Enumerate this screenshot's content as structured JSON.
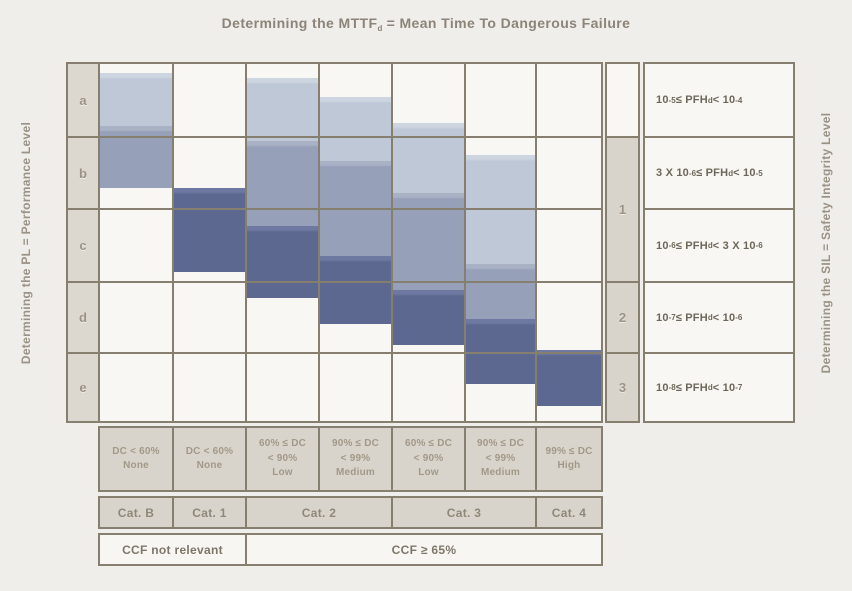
{
  "title": "Determining the MTTF_{d} = Mean Time To Dangerous Failure",
  "left_axis_label": "Determining the PL = Performance Level",
  "right_axis_label": "Determining the SIL = Safety Integrity Level",
  "pl_levels": [
    "a",
    "b",
    "c",
    "d",
    "e"
  ],
  "colors": {
    "background": "#f0eeeb",
    "cell_white": "#f8f7f4",
    "beige": "#d9d4cb",
    "label_beige": "#dcd8cf",
    "border": "#867e6f",
    "mttfd_low": "#bec8d7",
    "mttfd_low_highlight": "#cdd5e1",
    "mttfd_medium": "#96a0b8",
    "mttfd_medium_highlight": "#a9b2c5",
    "mttfd_high": "#5c6890",
    "mttfd_high_highlight": "#6d79a0"
  },
  "columns": [
    {
      "dc_label": [
        "DC < 60%",
        "None"
      ],
      "segments": [
        {
          "level": "low",
          "from": 0.16,
          "to": 0.89
        },
        {
          "level": "medium",
          "from": 0.89,
          "to": 1.75
        }
      ]
    },
    {
      "dc_label": [
        "DC < 60%",
        "None"
      ],
      "segments": [
        {
          "level": "high",
          "from": 1.75,
          "to": 2.92
        }
      ]
    },
    {
      "dc_label": [
        "60% ≤ DC",
        "< 90%",
        "Low"
      ],
      "segments": [
        {
          "level": "low",
          "from": 0.22,
          "to": 1.1
        },
        {
          "level": "medium",
          "from": 1.1,
          "to": 2.28
        },
        {
          "level": "high",
          "from": 2.28,
          "to": 3.28
        }
      ]
    },
    {
      "dc_label": [
        "90% ≤ DC",
        "< 99%",
        "Medium"
      ],
      "segments": [
        {
          "level": "low",
          "from": 0.49,
          "to": 1.38
        },
        {
          "level": "medium",
          "from": 1.38,
          "to": 2.7
        },
        {
          "level": "high",
          "from": 2.7,
          "to": 3.65
        }
      ]
    },
    {
      "dc_label": [
        "60% ≤ DC",
        "< 90%",
        "Low"
      ],
      "segments": [
        {
          "level": "low",
          "from": 0.85,
          "to": 1.83
        },
        {
          "level": "medium",
          "from": 1.83,
          "to": 3.18
        },
        {
          "level": "high",
          "from": 3.18,
          "to": 3.94
        }
      ]
    },
    {
      "dc_label": [
        "90% ≤ DC",
        "< 99%",
        "Medium"
      ],
      "segments": [
        {
          "level": "low",
          "from": 1.3,
          "to": 2.81
        },
        {
          "level": "medium",
          "from": 2.81,
          "to": 3.58
        },
        {
          "level": "high",
          "from": 3.58,
          "to": 4.48
        }
      ]
    },
    {
      "dc_label": [
        "99% ≤ DC",
        "High"
      ],
      "segments": [
        {
          "level": "high",
          "from": 4.01,
          "to": 4.79
        }
      ]
    }
  ],
  "categories": [
    {
      "label": "Cat. B",
      "span": 1
    },
    {
      "label": "Cat. 1",
      "span": 1
    },
    {
      "label": "Cat. 2",
      "span": 2
    },
    {
      "label": "Cat. 3",
      "span": 2
    },
    {
      "label": "Cat. 4",
      "span": 1
    }
  ],
  "ccf": [
    {
      "label": "CCF not relevant",
      "span": 2
    },
    {
      "label": "CCF ≥ 65%",
      "span": 5
    }
  ],
  "sil_cells": [
    {
      "label": "",
      "row_from": 0,
      "row_to": 1
    },
    {
      "label": "1",
      "row_from": 1,
      "row_to": 3
    },
    {
      "label": "2",
      "row_from": 3,
      "row_to": 4
    },
    {
      "label": "3",
      "row_from": 4,
      "row_to": 5
    }
  ],
  "pfh_ranges": [
    "10^{-5} ≤ PFH_{d} < 10^{-4}",
    "3 X 10^{-6} ≤ PFH_{d} < 10^{-5}",
    "10^{-6} ≤ PFH_{d} < 3 X 10^{-6}",
    "10^{-7} ≤ PFH_{d} < 10^{-6}",
    "10^{-8} ≤ PFH_{d} < 10^{-7}"
  ]
}
